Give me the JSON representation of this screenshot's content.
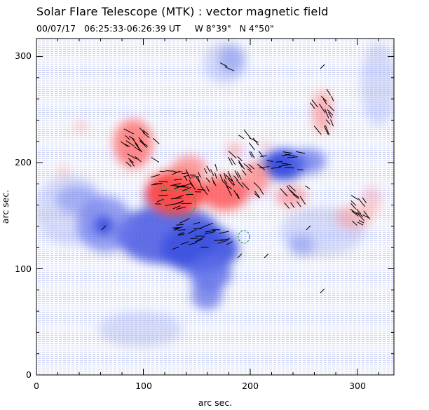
{
  "title": "Solar Flare Telescope (MTK) : vector magnetic field",
  "subtitle": "00/07/17   06:25:33-06:26:39 UT     W 8°39\"   N 4°50\"",
  "xlabel": "arc sec.",
  "ylabel": "arc sec.",
  "x_ticks": [
    "0",
    "100",
    "200",
    "300"
  ],
  "y_ticks": [
    "0",
    "100",
    "200",
    "300"
  ],
  "x_range": [
    0,
    335
  ],
  "y_range": [
    0,
    312
  ],
  "colors": {
    "positive_polarity": "#ff5a5a",
    "negative_polarity": "#4a5ae6",
    "transverse_vectors": "#000000",
    "contour": "#2aa82a",
    "background": "#f3f5ff"
  }
}
